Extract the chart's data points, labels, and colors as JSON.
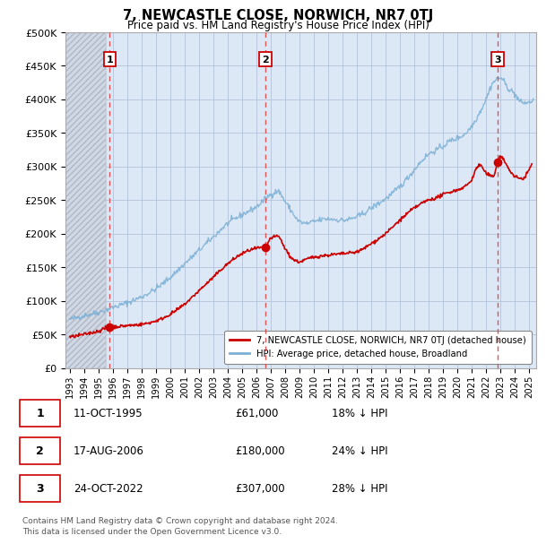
{
  "title": "7, NEWCASTLE CLOSE, NORWICH, NR7 0TJ",
  "subtitle": "Price paid vs. HM Land Registry's House Price Index (HPI)",
  "ylabel_values": [
    "£0",
    "£50K",
    "£100K",
    "£150K",
    "£200K",
    "£250K",
    "£300K",
    "£350K",
    "£400K",
    "£450K",
    "£500K"
  ],
  "ytick_values": [
    0,
    50000,
    100000,
    150000,
    200000,
    250000,
    300000,
    350000,
    400000,
    450000,
    500000
  ],
  "ylim": [
    0,
    500000
  ],
  "xlim_start": 1992.7,
  "xlim_end": 2025.5,
  "xtick_years": [
    1993,
    1994,
    1995,
    1996,
    1997,
    1998,
    1999,
    2000,
    2001,
    2002,
    2003,
    2004,
    2005,
    2006,
    2007,
    2008,
    2009,
    2010,
    2011,
    2012,
    2013,
    2014,
    2015,
    2016,
    2017,
    2018,
    2019,
    2020,
    2021,
    2022,
    2023,
    2024,
    2025
  ],
  "sale_dates": [
    1995.79,
    2006.63,
    2022.81
  ],
  "sale_prices": [
    61000,
    180000,
    307000
  ],
  "sale_labels": [
    "1",
    "2",
    "3"
  ],
  "red_line_color": "#cc0000",
  "blue_line_color": "#7bafd4",
  "dot_color": "#cc0000",
  "dashed_color": "#dd4444",
  "hatch_bg_color": "#d8d8d8",
  "light_blue_bg": "#dce8f5",
  "grid_color": "#b8c8dc",
  "legend_label_red": "7, NEWCASTLE CLOSE, NORWICH, NR7 0TJ (detached house)",
  "legend_label_blue": "HPI: Average price, detached house, Broadland",
  "table_rows": [
    {
      "label": "1",
      "date": "11-OCT-1995",
      "price": "£61,000",
      "hpi": "18% ↓ HPI"
    },
    {
      "label": "2",
      "date": "17-AUG-2006",
      "price": "£180,000",
      "hpi": "24% ↓ HPI"
    },
    {
      "label": "3",
      "date": "24-OCT-2022",
      "price": "£307,000",
      "hpi": "28% ↓ HPI"
    }
  ],
  "footnote": "Contains HM Land Registry data © Crown copyright and database right 2024.\nThis data is licensed under the Open Government Licence v3.0.",
  "fig_bg_color": "#ffffff",
  "hatch_cutoff": 1995.79
}
